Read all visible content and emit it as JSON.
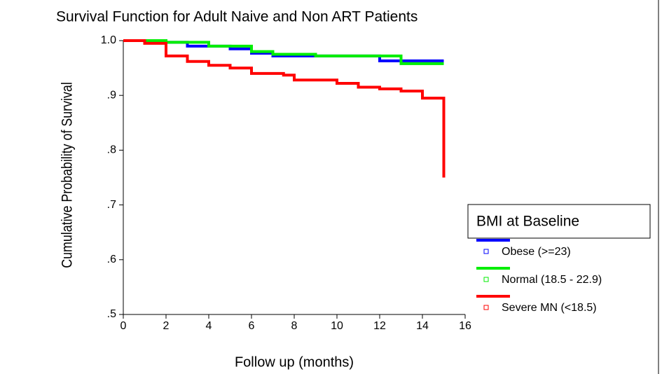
{
  "chart_data": {
    "type": "step",
    "title": "Survival Function for Adult Naive and Non ART Patients",
    "x_label": "Follow up (months)",
    "y_label": "Cumulative Probability of Survival",
    "legend_title": "BMI at Baseline",
    "xlim": [
      0,
      16
    ],
    "xticks": [
      0,
      2,
      4,
      6,
      8,
      10,
      12,
      14,
      16
    ],
    "ylim": [
      0.5,
      1.0
    ],
    "yticks": [
      {
        "value": 0.5,
        "label": ".5"
      },
      {
        "value": 0.6,
        "label": ".6"
      },
      {
        "value": 0.7,
        "label": ".7"
      },
      {
        "value": 0.8,
        "label": ".8"
      },
      {
        "value": 0.9,
        "label": ".9"
      },
      {
        "value": 1.0,
        "label": "1.0"
      }
    ],
    "series": [
      {
        "name": "Obese (>=23)",
        "color": "#0000ff",
        "x": [
          0,
          2,
          3,
          5,
          6,
          7,
          12,
          15
        ],
        "values": [
          1.0,
          0.997,
          0.99,
          0.985,
          0.977,
          0.972,
          0.963,
          0.963
        ]
      },
      {
        "name": "Normal (18.5 - 22.9)",
        "color": "#00ee00",
        "x": [
          0,
          2,
          4,
          6,
          7,
          9,
          13,
          15
        ],
        "values": [
          1.0,
          0.997,
          0.99,
          0.98,
          0.975,
          0.972,
          0.958,
          0.958
        ]
      },
      {
        "name": "Severe MN (<18.5)",
        "color": "#ff0000",
        "x": [
          0,
          1,
          2,
          3,
          4,
          5,
          6,
          7.5,
          8,
          10,
          11,
          12,
          13,
          14,
          15
        ],
        "values": [
          1.0,
          0.995,
          0.972,
          0.962,
          0.955,
          0.95,
          0.94,
          0.937,
          0.928,
          0.922,
          0.915,
          0.912,
          0.908,
          0.895,
          0.75
        ]
      }
    ]
  }
}
